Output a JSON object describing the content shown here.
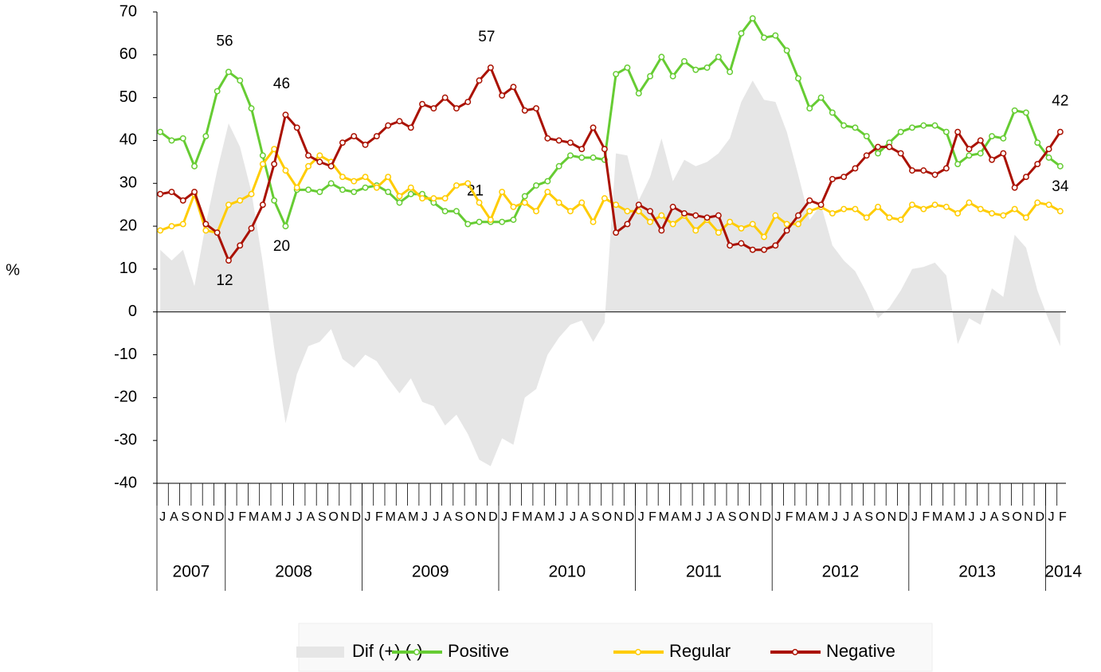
{
  "chart_data": {
    "type": "line",
    "y_label": "%",
    "categories": [
      "J",
      "A",
      "S",
      "O",
      "N",
      "D",
      "J",
      "F",
      "M",
      "A",
      "M",
      "J",
      "J",
      "A",
      "S",
      "O",
      "N",
      "D",
      "J",
      "F",
      "M",
      "A",
      "M",
      "J",
      "J",
      "A",
      "S",
      "O",
      "N",
      "D",
      "J",
      "F",
      "M",
      "A",
      "M",
      "J",
      "J",
      "A",
      "S",
      "O",
      "N",
      "D",
      "J",
      "F",
      "M",
      "A",
      "M",
      "J",
      "J",
      "A",
      "S",
      "O",
      "N",
      "D",
      "J",
      "F",
      "M",
      "A",
      "M",
      "J",
      "J",
      "A",
      "S",
      "O",
      "N",
      "D",
      "J",
      "F",
      "M",
      "A",
      "M",
      "J",
      "J",
      "A",
      "S",
      "O",
      "N",
      "D",
      "J",
      "F"
    ],
    "years": [
      "2007",
      "2008",
      "2009",
      "2010",
      "2011",
      "2012",
      "2013",
      "2014"
    ],
    "ylim": [
      -40,
      70
    ],
    "yticks": [
      -40,
      -30,
      -20,
      -10,
      0,
      10,
      20,
      30,
      40,
      50,
      60,
      70
    ],
    "series": [
      {
        "name": "Dif (+) (-)",
        "type": "area",
        "color": "#e6e6e6",
        "values": [
          14.5,
          12,
          14.5,
          6,
          20.5,
          33,
          44,
          38.5,
          28,
          11.5,
          -8.5,
          -26,
          -14.5,
          -8,
          -7,
          -4,
          -11,
          -13,
          -10,
          -11.5,
          -15.5,
          -19,
          -15.5,
          -21,
          -22,
          -26.5,
          -24,
          -28.5,
          -34.5,
          -36,
          -29.5,
          -31,
          -20,
          -18,
          -10,
          -6,
          -3,
          -2,
          -7,
          -2.5,
          37,
          36.5,
          26,
          31.5,
          40.5,
          30.5,
          35.5,
          34,
          35,
          37,
          40.5,
          49,
          54,
          49.5,
          49,
          42,
          32,
          21.5,
          25,
          15.5,
          12,
          9.5,
          4.5,
          -1.5,
          1,
          5,
          10,
          10.5,
          11.5,
          8.5,
          -7.5,
          -1.5,
          -3,
          5.5,
          3.5,
          18,
          15,
          5,
          -2,
          -8
        ]
      },
      {
        "name": "Positive",
        "type": "line",
        "color": "#66cc33",
        "values": [
          42,
          40,
          40.5,
          34,
          41,
          51.5,
          56,
          54,
          47.5,
          36.5,
          26,
          20,
          28.5,
          28.5,
          28,
          30,
          28.5,
          28,
          29,
          29.5,
          28,
          25.5,
          27.5,
          27.5,
          25.5,
          23.5,
          23.5,
          20.5,
          21,
          21,
          21,
          21.5,
          27,
          29.5,
          30.5,
          34,
          36.5,
          36,
          36,
          35.5,
          55.5,
          57,
          51,
          55,
          59.5,
          55,
          58.5,
          56.5,
          57,
          59.5,
          56,
          65,
          68.5,
          64,
          64.5,
          61,
          54.5,
          47.5,
          50,
          46.5,
          43.5,
          43,
          41,
          37,
          39.5,
          42,
          43,
          43.5,
          43.5,
          42,
          34.5,
          36.5,
          37,
          41,
          40.5,
          47,
          46.5,
          39.5,
          36,
          34
        ],
        "value_labels": [
          null,
          null,
          null,
          null,
          null,
          null,
          "56",
          null,
          null,
          null,
          null,
          "20",
          null,
          null,
          null,
          null,
          null,
          null,
          null,
          null,
          null,
          null,
          null,
          null,
          null,
          null,
          null,
          null,
          "21",
          null,
          null,
          null,
          null,
          null,
          null,
          null,
          null,
          null,
          null,
          null,
          null,
          null,
          null,
          null,
          null,
          null,
          null,
          null,
          null,
          null,
          null,
          null,
          null,
          null,
          null,
          null,
          null,
          null,
          null,
          null,
          null,
          null,
          null,
          null,
          null,
          null,
          null,
          null,
          null,
          null,
          null,
          null,
          null,
          null,
          null,
          null,
          null,
          null,
          null,
          "34"
        ]
      },
      {
        "name": "Regular",
        "type": "line",
        "color": "#ffcc00",
        "values": [
          19,
          20,
          20.5,
          27.5,
          19,
          18.5,
          25,
          26,
          27.5,
          34.5,
          38,
          33,
          29,
          34,
          36.5,
          35,
          31.5,
          30.5,
          31.5,
          29,
          31.5,
          27,
          29,
          26.5,
          26.5,
          26.5,
          29.5,
          30,
          25.5,
          21.5,
          28,
          24.5,
          25.5,
          23.5,
          28,
          25.5,
          23.5,
          25.5,
          21,
          26.5,
          25,
          23.5,
          23.5,
          21,
          22.5,
          20.5,
          22.5,
          19,
          21.5,
          18.5,
          21,
          19.5,
          20.5,
          17.5,
          22.5,
          20.5,
          20.5,
          23.5,
          24.5,
          23,
          24,
          24,
          22,
          24.5,
          22,
          21.5,
          25,
          24,
          25,
          24.5,
          23,
          25.5,
          24,
          23,
          22.5,
          24,
          22,
          25.5,
          25,
          23.5
        ]
      },
      {
        "name": "Negative",
        "type": "line",
        "color": "#aa1100",
        "values": [
          27.5,
          28,
          26,
          28,
          20.5,
          18.5,
          12,
          15.5,
          19.5,
          25,
          34.5,
          46,
          43,
          36.5,
          35,
          34,
          39.5,
          41,
          39,
          41,
          43.5,
          44.5,
          43,
          48.5,
          47.5,
          50,
          47.5,
          49,
          54,
          57,
          50.5,
          52.5,
          47,
          47.5,
          40.5,
          40,
          39.5,
          38,
          43,
          38,
          18.5,
          20.5,
          25,
          23.5,
          19,
          24.5,
          23,
          22.5,
          22,
          22.5,
          15.5,
          16,
          14.5,
          14.5,
          15.5,
          19,
          22.5,
          26,
          25,
          31,
          31.5,
          33.5,
          36.5,
          38.5,
          38.5,
          37,
          33,
          33,
          32,
          33.5,
          42,
          38,
          40,
          35.5,
          37,
          29,
          31.5,
          34.5,
          38,
          42
        ],
        "value_labels": [
          null,
          null,
          null,
          null,
          null,
          null,
          "12",
          null,
          null,
          null,
          null,
          "46",
          null,
          null,
          null,
          null,
          null,
          null,
          null,
          null,
          null,
          null,
          null,
          null,
          null,
          null,
          null,
          null,
          null,
          "57",
          null,
          null,
          null,
          null,
          null,
          null,
          null,
          null,
          null,
          null,
          null,
          null,
          null,
          null,
          null,
          null,
          null,
          null,
          null,
          null,
          null,
          null,
          null,
          null,
          null,
          null,
          null,
          null,
          null,
          null,
          null,
          null,
          null,
          null,
          null,
          null,
          null,
          null,
          null,
          null,
          null,
          null,
          null,
          null,
          null,
          null,
          null,
          null,
          null,
          "42"
        ]
      }
    ]
  }
}
